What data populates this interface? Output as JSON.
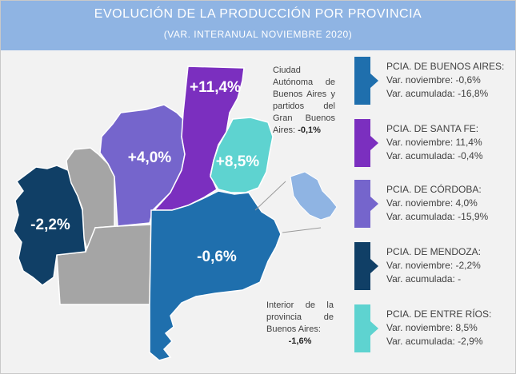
{
  "header": {
    "title": "EVOLUCIÓN DE LA PRODUCCIÓN POR PROVINCIA",
    "subtitle": "(VAR. INTERANUAL NOVIEMBRE 2020)"
  },
  "colors": {
    "header_bg": "#8fb4e3",
    "buenos_aires": "#1f6fad",
    "santa_fe": "#7b2fbf",
    "cordoba": "#7565cc",
    "mendoza": "#103f66",
    "entre_rios": "#5ed3d0",
    "other_provinces": "#a5a5a5"
  },
  "map": {
    "santa_fe_value": "+11,4%",
    "cordoba_value": "+4,0%",
    "entre_rios_value": "+8,5%",
    "mendoza_value": "-2,2%",
    "buenos_aires_value": "-0,6%"
  },
  "notes": {
    "caba_text": "Ciudad Autónoma de Buenos Aires y partidos del Gran Buenos Aires:",
    "caba_value": "-0,1%",
    "interior_text": "Interior de la provincia de Buenos Aires:",
    "interior_value": "-1,6%"
  },
  "cards": [
    {
      "name": "PCIA. DE BUENOS AIRES:",
      "monthly": "Var. noviembre: -0,6%",
      "cumulative": "Var. acumulada: -16,8%"
    },
    {
      "name": "PCIA. DE SANTA FE:",
      "monthly": "Var. noviembre: 11,4%",
      "cumulative": "Var. acumulada: -0,4%"
    },
    {
      "name": "PCIA. DE CÓRDOBA:",
      "monthly": "Var. noviembre: 4,0%",
      "cumulative": "Var. acumulada: -15,9%"
    },
    {
      "name": "PCIA. DE MENDOZA:",
      "monthly": "Var. noviembre: -2,2%",
      "cumulative": "Var. acumulada: -"
    },
    {
      "name": "PCIA. DE ENTRE RÍOS:",
      "monthly": "Var. noviembre: 8,5%",
      "cumulative": "Var. acumulada: -2,9%"
    }
  ]
}
